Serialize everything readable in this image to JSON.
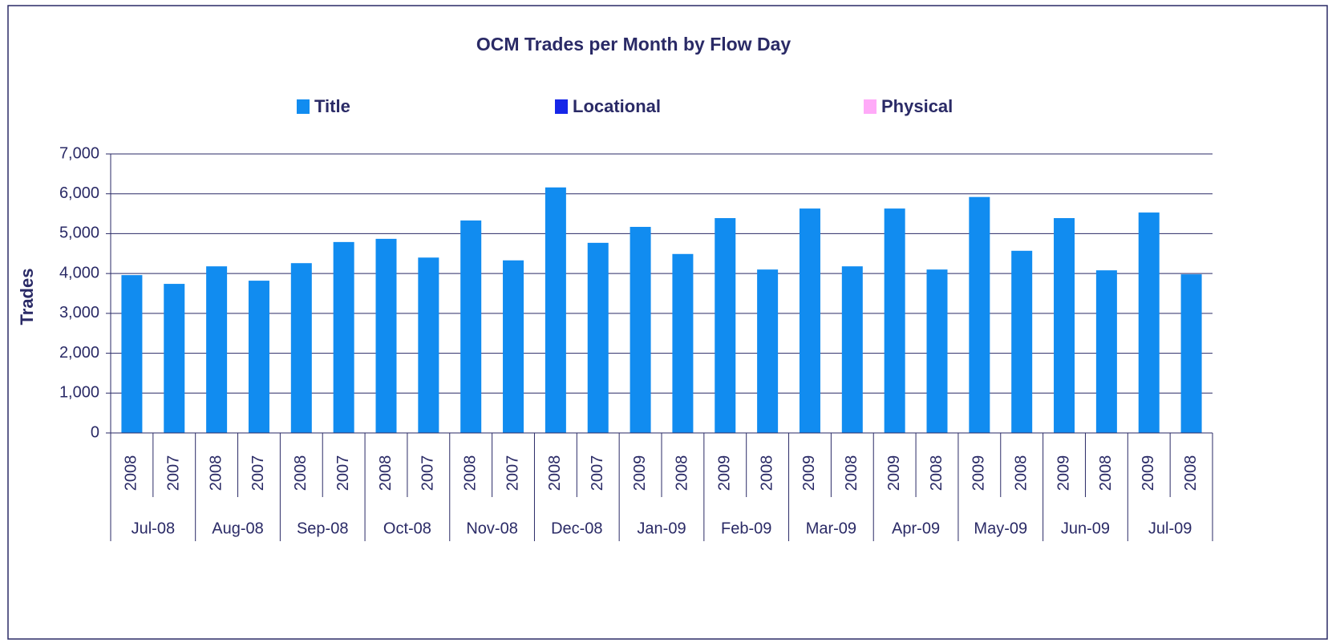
{
  "chart_data": {
    "type": "stacked_bar",
    "title": "OCM Trades per Month by Flow Day",
    "ylabel": "Trades",
    "categories": [
      "2008",
      "2007",
      "2008",
      "2007",
      "2008",
      "2007",
      "2008",
      "2007",
      "2008",
      "2007",
      "2008",
      "2007",
      "2009",
      "2008",
      "2009",
      "2008",
      "2009",
      "2008",
      "2009",
      "2008",
      "2009",
      "2008",
      "2009",
      "2008",
      "2009",
      "2008"
    ],
    "category_groups": [
      "Jul-08",
      "Aug-08",
      "Sep-08",
      "Oct-08",
      "Nov-08",
      "Dec-08",
      "Jan-09",
      "Feb-09",
      "Mar-09",
      "Apr-09",
      "May-09",
      "Jun-09",
      "Jul-09"
    ],
    "series": [
      {
        "name": "Title",
        "color": "#118cf0",
        "values": [
          3960,
          3740,
          4180,
          3820,
          4260,
          4790,
          4870,
          4400,
          5330,
          4330,
          6160,
          4770,
          5170,
          4490,
          5390,
          4100,
          5630,
          4180,
          5630,
          4100,
          5920,
          4570,
          5390,
          4080,
          5530,
          3980
        ]
      },
      {
        "name": "Locational",
        "color": "#1626e8",
        "values": [
          0,
          0,
          0,
          0,
          0,
          0,
          0,
          0,
          0,
          0,
          0,
          0,
          0,
          0,
          0,
          0,
          0,
          0,
          0,
          0,
          0,
          0,
          0,
          0,
          0,
          0
        ]
      },
      {
        "name": "Physical",
        "color": "#ffaaf8",
        "values": [
          0,
          0,
          0,
          0,
          0,
          0,
          0,
          0,
          0,
          0,
          0,
          0,
          0,
          0,
          0,
          0,
          0,
          0,
          0,
          0,
          0,
          0,
          0,
          0,
          0,
          0
        ]
      }
    ],
    "ylim": [
      0,
      7000
    ],
    "yticks": [
      0,
      {
        "value": 1000,
        "label": "1,000"
      },
      {
        "value": 2000,
        "label": "2,000"
      },
      {
        "value": 3000,
        "label": "3,000"
      },
      {
        "value": 4000,
        "label": "4,000"
      },
      {
        "value": 5000,
        "label": "5,000"
      },
      {
        "value": 6000,
        "label": "6,000"
      },
      {
        "value": 7000,
        "label": "7,000"
      }
    ],
    "grid": true,
    "legend": "top"
  }
}
